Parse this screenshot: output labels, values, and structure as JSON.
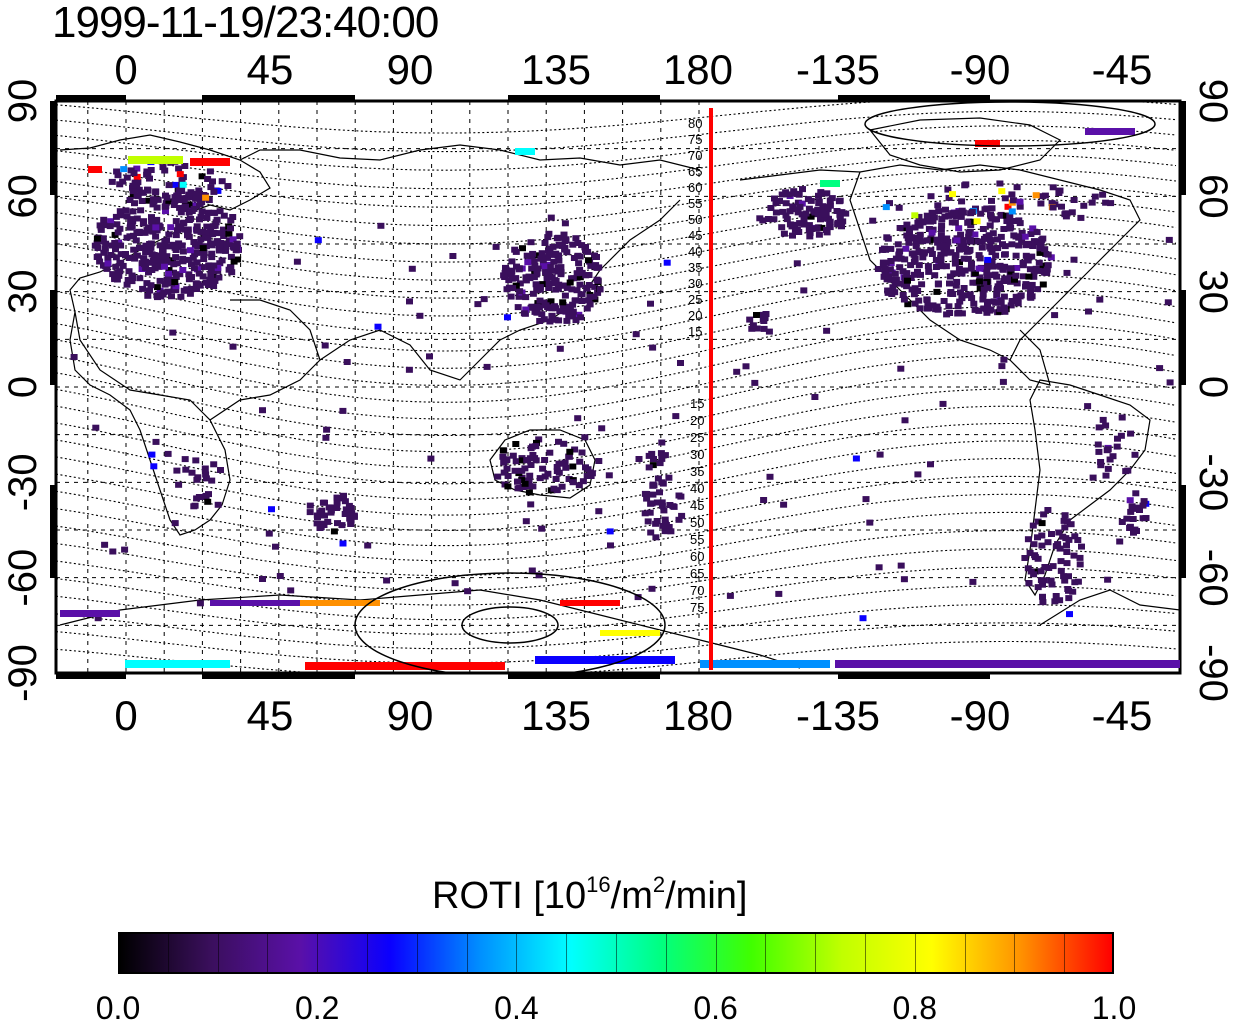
{
  "timestamp": "1999-11-19/23:40:00",
  "map": {
    "lon_ticks": [
      "0",
      "45",
      "90",
      "135",
      "180",
      "-135",
      "-90",
      "-45"
    ],
    "lat_ticks": [
      "90",
      "60",
      "30",
      "0",
      "-30",
      "-60",
      "-90"
    ],
    "terminator_color": "#ff0000",
    "north_contours": [
      "80",
      "75",
      "70",
      "65",
      "60",
      "55",
      "50",
      "45",
      "40",
      "35",
      "30",
      "25",
      "20",
      "15"
    ],
    "south_contours": [
      "15",
      "20",
      "25",
      "30",
      "35",
      "40",
      "45",
      "50",
      "55",
      "60",
      "65",
      "70",
      "75"
    ]
  },
  "colorbar": {
    "title_prefix": "ROTI  [10",
    "title_sup1": "16",
    "title_mid": "/m",
    "title_sup2": "2",
    "title_suffix": "/min]",
    "ticks": [
      "0.0",
      "0.2",
      "0.4",
      "0.6",
      "0.8",
      "1.0"
    ],
    "colors": [
      "#000000",
      "#3a0f5c",
      "#5a10a8",
      "#0a00ff",
      "#0090ff",
      "#00ffff",
      "#00ff80",
      "#40ff00",
      "#c0ff00",
      "#ffff00",
      "#ff9000",
      "#ff0000"
    ]
  }
}
